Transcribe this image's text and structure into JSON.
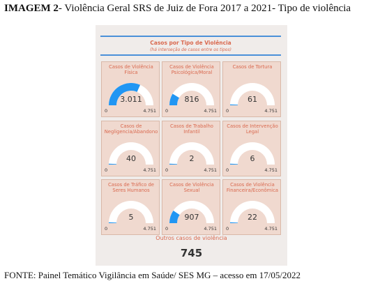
{
  "heading": {
    "label": "IMAGEM 2",
    "text": "- Violência Geral SRS de Juiz de Fora 2017 a 2021- Tipo de violência"
  },
  "panel": {
    "title": "Casos por Tipo de Violência",
    "subtitle": "(há interseção de casos entre os tipos)"
  },
  "colors": {
    "accent": "#2196f3",
    "gauge_track": "#ffffff",
    "title": "#d9694f",
    "card_bg": "#f0d9cf",
    "panel_bg": "#f0ecea"
  },
  "gauges": [
    {
      "title": "Casos de Violência Física",
      "value": 3011,
      "value_label": "3.011",
      "min": "0",
      "max": "4.751",
      "max_value": 4751
    },
    {
      "title": "Casos de Violência Psicológica/Moral",
      "value": 816,
      "value_label": "816",
      "min": "0",
      "max": "4.751",
      "max_value": 4751
    },
    {
      "title": "Casos de Tortura",
      "value": 61,
      "value_label": "61",
      "min": "0",
      "max": "4.751",
      "max_value": 4751
    },
    {
      "title": "Casos de Negligencia/Abandono",
      "value": 40,
      "value_label": "40",
      "min": "0",
      "max": "4.751",
      "max_value": 4751
    },
    {
      "title": "Casos de Trabalho Infantil",
      "value": 2,
      "value_label": "2",
      "min": "0",
      "max": "4.751",
      "max_value": 4751
    },
    {
      "title": "Casos de Intervenção Legal",
      "value": 6,
      "value_label": "6",
      "min": "0",
      "max": "4.751",
      "max_value": 4751
    },
    {
      "title": "Casos de Tráfico de Seres Humanos",
      "value": 5,
      "value_label": "5",
      "min": "0",
      "max": "4.751",
      "max_value": 4751
    },
    {
      "title": "Casos de Violência Sexual",
      "value": 907,
      "value_label": "907",
      "min": "0",
      "max": "4.751",
      "max_value": 4751
    },
    {
      "title": "Casos de Violência Financeira/Econômica",
      "value": 22,
      "value_label": "22",
      "min": "0",
      "max": "4.751",
      "max_value": 4751
    }
  ],
  "other": {
    "label": "Outros casos de violência",
    "value": "745"
  },
  "footer": {
    "text": "FONTE: Painel Temático Vigilância em Saúde/ SES MG – acesso em 17/05/2022"
  }
}
